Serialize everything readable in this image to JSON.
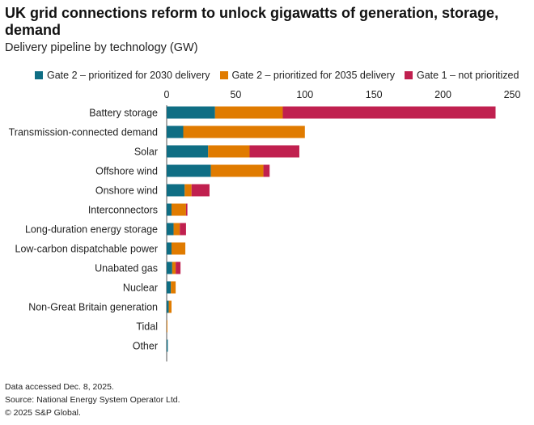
{
  "header": {
    "title": "UK grid connections reform to unlock gigawatts of generation, storage, demand",
    "subtitle": "Delivery pipeline by technology (GW)"
  },
  "colors": {
    "gate2_2030": "#0f6e84",
    "gate2_2035": "#e07b00",
    "gate1": "#c0204f",
    "axis": "#555555"
  },
  "footer": {
    "line1": "Data accessed Dec. 8, 2025.",
    "line2": "Source: National Energy System Operator Ltd.",
    "line3": "© 2025 S&P Global."
  },
  "chart_data": {
    "type": "bar",
    "orientation": "horizontal",
    "stacked": true,
    "title": "UK grid connections reform to unlock gigawatts of generation, storage, demand",
    "subtitle": "Delivery pipeline by technology (GW)",
    "xlim": [
      0,
      250
    ],
    "xticks": [
      0,
      50,
      100,
      150,
      200,
      250
    ],
    "legend_position": "top",
    "grid": false,
    "categories": [
      "Battery storage",
      "Transmission-connected demand",
      "Solar",
      "Offshore wind",
      "Onshore wind",
      "Interconnectors",
      "Long-duration energy storage",
      "Low-carbon dispatchable power",
      "Unabated gas",
      "Nuclear",
      "Non-Great Britain generation",
      "Tidal",
      "Other"
    ],
    "series": [
      {
        "name": "Gate 2 – prioritized for 2030 delivery",
        "color": "#0f6e84",
        "values": [
          35,
          12,
          30,
          32,
          13,
          3.5,
          5,
          3.5,
          4,
          3,
          1.5,
          0,
          0.8
        ]
      },
      {
        "name": "Gate 2 – prioritized for 2035 delivery",
        "color": "#e07b00",
        "values": [
          49,
          88,
          30,
          38,
          5,
          10.5,
          4.5,
          10,
          2.5,
          3.5,
          2,
          0.5,
          0
        ]
      },
      {
        "name": "Gate 1 – not prioritized",
        "color": "#c0204f",
        "values": [
          154,
          0,
          36,
          4.5,
          13,
          1,
          4.5,
          0,
          3.5,
          0,
          0,
          0,
          0
        ]
      }
    ]
  }
}
